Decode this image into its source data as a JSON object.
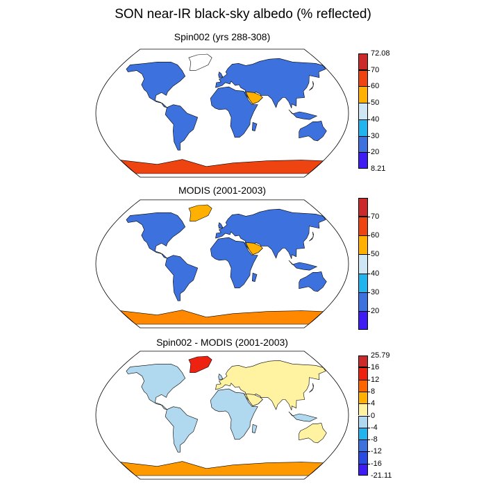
{
  "title": "SON near-IR black-sky albedo (% reflected)",
  "panels": [
    {
      "title": "Spin002 (yrs 288-308)",
      "colorbar": {
        "labels": [
          "72.08",
          "70",
          "60",
          "50",
          "40",
          "30",
          "20",
          "8.21"
        ],
        "colors": [
          "#cc2a2a",
          "#ee4411",
          "#ffb000",
          "#cfe6f5",
          "#22b4ee",
          "#3d72de",
          "#3f1bf4"
        ]
      }
    },
    {
      "title": "MODIS (2001-2003)",
      "colorbar": {
        "labels": [
          "",
          "70",
          "60",
          "50",
          "40",
          "30",
          "20",
          ""
        ],
        "colors": [
          "#cc2a2a",
          "#ee4411",
          "#ffb000",
          "#cfe6f5",
          "#22b4ee",
          "#3d72de",
          "#3f1bf4"
        ]
      }
    },
    {
      "title": "Spin002 - MODIS (2001-2003)",
      "colorbar": {
        "labels": [
          "25.79",
          "16",
          "12",
          "8",
          "4",
          "0",
          "-4",
          "-8",
          "-12",
          "-16",
          "-21.11"
        ],
        "colors": [
          "#cc2a2a",
          "#ee2211",
          "#ff6600",
          "#ffb000",
          "#fff2a0",
          "#b0d8ee",
          "#22b4ee",
          "#3d72de",
          "#2a4be0",
          "#3f1bf4"
        ]
      }
    }
  ]
}
